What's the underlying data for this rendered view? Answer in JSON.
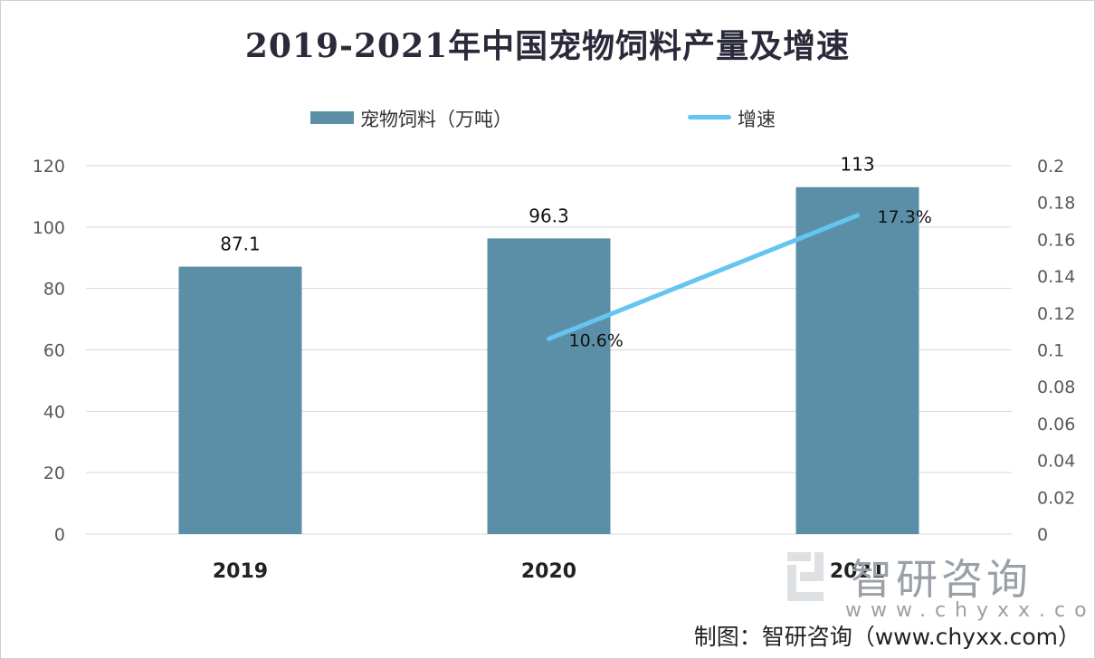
{
  "chart_data": {
    "type": "bar+line",
    "title": "2019-2021年中国宠物饲料产量及增速",
    "categories": [
      "2019",
      "2020",
      "2021"
    ],
    "series": [
      {
        "name": "宠物饲料（万吨）",
        "type": "bar",
        "axis": "left",
        "values": [
          87.1,
          96.3,
          113
        ],
        "labels": [
          "87.1",
          "96.3",
          "113"
        ],
        "color": "#5b8fa8"
      },
      {
        "name": "增速",
        "type": "line",
        "axis": "right",
        "values": [
          null,
          0.106,
          0.173
        ],
        "labels": [
          null,
          "10.6%",
          "17.3%"
        ],
        "color": "#63c5f0"
      }
    ],
    "ylim_left": [
      0,
      120
    ],
    "yticks_left": [
      "0",
      "20",
      "40",
      "60",
      "80",
      "100",
      "120"
    ],
    "ylim_right": [
      0,
      0.2
    ],
    "yticks_right": [
      "0",
      "0.02",
      "0.04",
      "0.06",
      "0.08",
      "0.1",
      "0.12",
      "0.14",
      "0.16",
      "0.18",
      "0.2"
    ],
    "grid": true,
    "legend_position": "top"
  },
  "watermark": {
    "name": "智研咨询",
    "url": "www.chyxx.com"
  },
  "source": "制图：智研咨询（www.chyxx.com）",
  "colors": {
    "bar": "#5b8fa8",
    "line": "#63c5f0",
    "grid": "#d9d9d9"
  }
}
